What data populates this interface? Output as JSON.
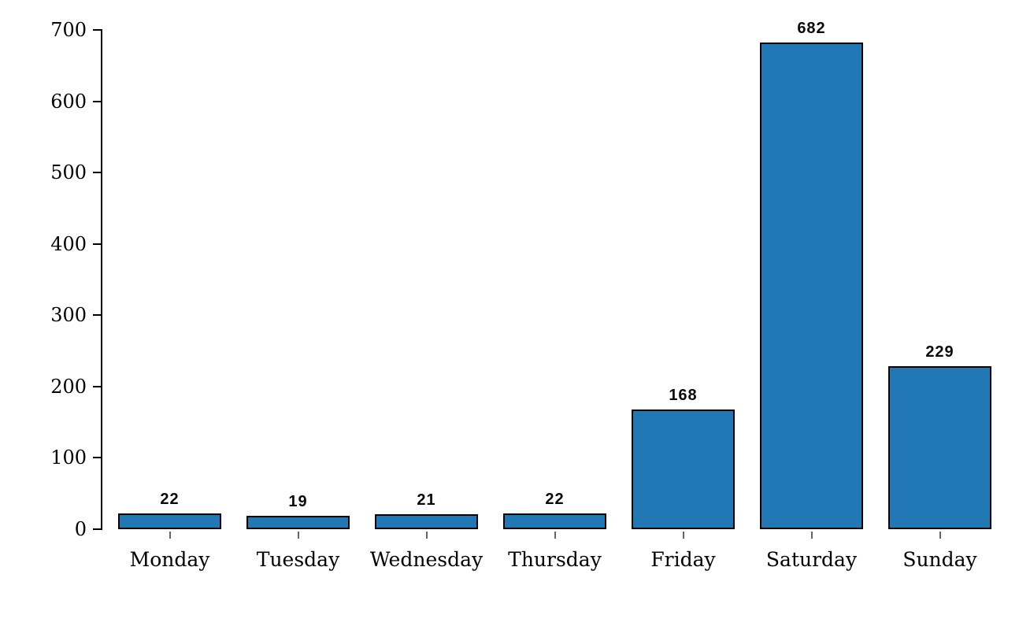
{
  "chart_data": {
    "type": "bar",
    "categories": [
      "Monday",
      "Tuesday",
      "Wednesday",
      "Thursday",
      "Friday",
      "Saturday",
      "Sunday"
    ],
    "values": [
      22,
      19,
      21,
      22,
      168,
      682,
      229
    ],
    "ylim": [
      0,
      700
    ],
    "yticks": [
      0,
      100,
      200,
      300,
      400,
      500,
      600,
      700
    ],
    "grid": false,
    "legend": "none",
    "bar_color": "#2277b5",
    "bar_edge_color": "#000000",
    "axis_color": "#000000",
    "x_tick_color": "#666666",
    "label_color": "#000000",
    "background_color": "#ffffff"
  }
}
